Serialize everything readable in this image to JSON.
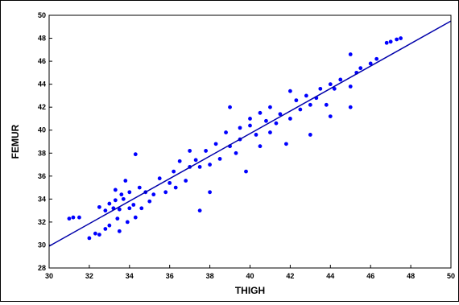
{
  "chart_data": {
    "type": "scatter",
    "title": "",
    "xlabel": "THIGH",
    "ylabel": "FEMUR",
    "xlim": [
      30,
      50
    ],
    "ylim": [
      28,
      50
    ],
    "xticks": [
      "30",
      "32",
      "34",
      "36",
      "38",
      "40",
      "42",
      "44",
      "46",
      "48",
      "50"
    ],
    "yticks": [
      "28",
      "30",
      "32",
      "34",
      "36",
      "38",
      "40",
      "42",
      "44",
      "46",
      "48",
      "50"
    ],
    "grid": false,
    "legend": "none",
    "colors": {
      "points": "#0000ff",
      "line": "#0000aa",
      "axis": "#000000"
    },
    "fit_line": {
      "x1": 30,
      "y1": 29.9,
      "x2": 50,
      "y2": 49.5
    },
    "series": [
      {
        "values": [
          [
            31.0,
            32.3
          ],
          [
            31.2,
            32.4
          ],
          [
            31.5,
            32.4
          ],
          [
            32.0,
            30.6
          ],
          [
            32.3,
            31.0
          ],
          [
            32.5,
            30.9
          ],
          [
            32.5,
            33.3
          ],
          [
            32.8,
            31.4
          ],
          [
            32.8,
            33.0
          ],
          [
            33.0,
            31.7
          ],
          [
            33.0,
            33.6
          ],
          [
            33.2,
            33.2
          ],
          [
            33.3,
            33.9
          ],
          [
            33.3,
            34.8
          ],
          [
            33.4,
            32.3
          ],
          [
            33.5,
            31.2
          ],
          [
            33.5,
            33.1
          ],
          [
            33.6,
            34.4
          ],
          [
            33.7,
            34.0
          ],
          [
            33.8,
            35.6
          ],
          [
            33.9,
            32.0
          ],
          [
            34.0,
            33.2
          ],
          [
            34.0,
            34.6
          ],
          [
            34.2,
            33.5
          ],
          [
            34.3,
            32.4
          ],
          [
            34.3,
            37.9
          ],
          [
            34.5,
            35.0
          ],
          [
            34.6,
            33.2
          ],
          [
            34.8,
            34.6
          ],
          [
            35.0,
            33.8
          ],
          [
            35.2,
            34.4
          ],
          [
            35.5,
            35.8
          ],
          [
            35.8,
            34.6
          ],
          [
            36.0,
            35.4
          ],
          [
            36.2,
            36.4
          ],
          [
            36.3,
            35.0
          ],
          [
            36.5,
            37.3
          ],
          [
            36.8,
            35.6
          ],
          [
            37.0,
            36.8
          ],
          [
            37.0,
            38.2
          ],
          [
            37.3,
            37.4
          ],
          [
            37.5,
            36.8
          ],
          [
            37.5,
            33.0
          ],
          [
            37.8,
            38.2
          ],
          [
            38.0,
            37.0
          ],
          [
            38.0,
            34.6
          ],
          [
            38.3,
            38.8
          ],
          [
            38.5,
            37.5
          ],
          [
            38.8,
            39.8
          ],
          [
            39.0,
            38.6
          ],
          [
            39.0,
            42.0
          ],
          [
            39.3,
            38.0
          ],
          [
            39.5,
            40.2
          ],
          [
            39.5,
            39.2
          ],
          [
            39.8,
            36.4
          ],
          [
            40.0,
            40.4
          ],
          [
            40.0,
            41.0
          ],
          [
            40.3,
            39.6
          ],
          [
            40.5,
            41.5
          ],
          [
            40.5,
            38.6
          ],
          [
            40.8,
            40.8
          ],
          [
            41.0,
            42.0
          ],
          [
            41.0,
            39.8
          ],
          [
            41.3,
            40.6
          ],
          [
            41.5,
            41.4
          ],
          [
            41.8,
            38.8
          ],
          [
            42.0,
            41.0
          ],
          [
            42.0,
            43.4
          ],
          [
            42.3,
            42.6
          ],
          [
            42.5,
            41.8
          ],
          [
            42.8,
            43.0
          ],
          [
            43.0,
            42.2
          ],
          [
            43.0,
            39.6
          ],
          [
            43.3,
            42.8
          ],
          [
            43.5,
            43.6
          ],
          [
            43.8,
            42.2
          ],
          [
            44.0,
            44.0
          ],
          [
            44.0,
            41.2
          ],
          [
            44.2,
            43.6
          ],
          [
            44.5,
            44.4
          ],
          [
            45.0,
            42.0
          ],
          [
            45.0,
            43.8
          ],
          [
            45.0,
            46.6
          ],
          [
            45.3,
            45.0
          ],
          [
            45.5,
            45.4
          ],
          [
            46.0,
            45.8
          ],
          [
            46.3,
            46.2
          ],
          [
            46.8,
            47.6
          ],
          [
            47.0,
            47.7
          ],
          [
            47.3,
            47.9
          ],
          [
            47.5,
            48.0
          ]
        ]
      }
    ]
  }
}
